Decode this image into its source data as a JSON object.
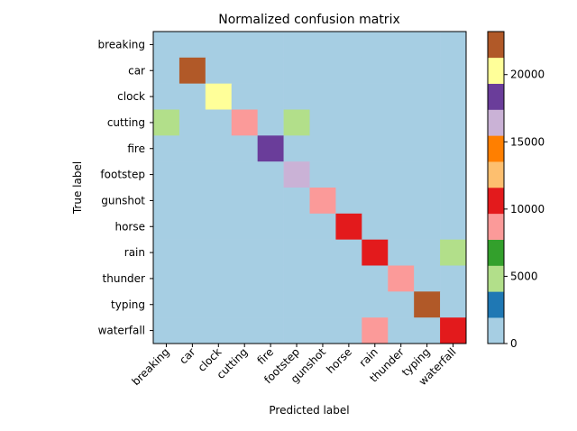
{
  "chart_data": {
    "type": "heatmap",
    "title": "Normalized confusion matrix",
    "xlabel": "Predicted label",
    "ylabel": "True label",
    "categories": [
      "breaking",
      "car",
      "clock",
      "cutting",
      "fire",
      "footstep",
      "gunshot",
      "horse",
      "rain",
      "thunder",
      "typing",
      "waterfall"
    ],
    "matrix": [
      [
        1800,
        0,
        0,
        0,
        0,
        0,
        0,
        0,
        0,
        0,
        0,
        0
      ],
      [
        0,
        23000,
        0,
        0,
        0,
        0,
        0,
        0,
        0,
        0,
        0,
        0
      ],
      [
        0,
        0,
        20000,
        0,
        0,
        0,
        0,
        0,
        0,
        0,
        0,
        0
      ],
      [
        5000,
        0,
        0,
        9000,
        0,
        5000,
        0,
        0,
        0,
        0,
        0,
        0
      ],
      [
        0,
        0,
        0,
        0,
        18000,
        0,
        0,
        0,
        0,
        0,
        0,
        0
      ],
      [
        0,
        0,
        0,
        0,
        0,
        16000,
        0,
        0,
        0,
        0,
        0,
        0
      ],
      [
        0,
        0,
        0,
        0,
        0,
        0,
        9000,
        0,
        0,
        0,
        0,
        0
      ],
      [
        0,
        0,
        0,
        0,
        0,
        0,
        0,
        11000,
        0,
        0,
        0,
        0
      ],
      [
        0,
        0,
        0,
        0,
        0,
        0,
        0,
        0,
        11000,
        0,
        0,
        5000
      ],
      [
        0,
        0,
        0,
        0,
        0,
        0,
        0,
        0,
        0,
        9000,
        0,
        0
      ],
      [
        0,
        0,
        0,
        0,
        0,
        0,
        0,
        0,
        0,
        0,
        23000,
        0
      ],
      [
        0,
        0,
        0,
        0,
        0,
        0,
        0,
        0,
        9000,
        0,
        0,
        11000
      ]
    ],
    "colormap": "Paired",
    "colorbar": {
      "range": [
        0,
        23200
      ],
      "ticks": [
        0,
        5000,
        10000,
        15000,
        20000
      ],
      "tick_labels": [
        "0",
        "5000",
        "10000",
        "15000",
        "20000"
      ],
      "colors": [
        "#a6cee3",
        "#1f78b4",
        "#b2df8a",
        "#33a02c",
        "#fb9a99",
        "#e31a1c",
        "#fdbf6f",
        "#ff7f00",
        "#cab2d6",
        "#6a3d9a",
        "#ffff99",
        "#b15928"
      ]
    }
  }
}
